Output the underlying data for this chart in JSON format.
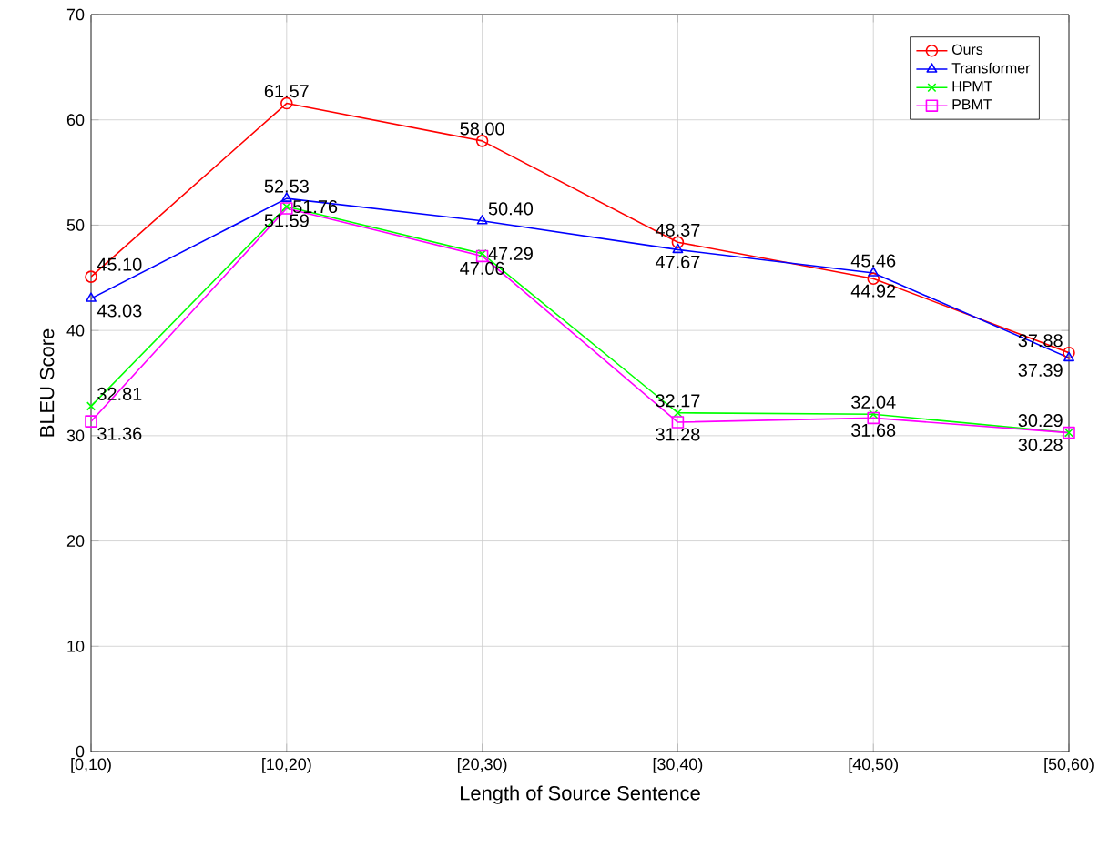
{
  "chart_data": {
    "type": "line",
    "xlabel": "Length of Source Sentence",
    "ylabel": "BLEU Score",
    "categories": [
      "[0,10)",
      "[10,20)",
      "[20,30)",
      "[30,40)",
      "[40,50)",
      "[50,60)"
    ],
    "ylim": [
      0,
      70
    ],
    "yticks": [
      0,
      10,
      20,
      30,
      40,
      50,
      60,
      70
    ],
    "grid": true,
    "legend": "top right",
    "series": [
      {
        "name": "Ours",
        "color": "#ff0000",
        "marker": "circle",
        "values": [
          45.1,
          61.57,
          58.0,
          48.37,
          44.92,
          37.88
        ],
        "value_labels": [
          "45.10",
          "61.57",
          "58.00",
          "48.37",
          "44.92",
          "37.88"
        ]
      },
      {
        "name": "Transformer",
        "color": "#0000ff",
        "marker": "triangle",
        "values": [
          43.03,
          52.53,
          50.4,
          47.67,
          45.46,
          37.39
        ],
        "value_labels": [
          "43.03",
          "52.53",
          "50.40",
          "47.67",
          "45.46",
          "37.39"
        ]
      },
      {
        "name": "HPMT",
        "color": "#00ff00",
        "marker": "cross",
        "values": [
          32.81,
          51.76,
          47.29,
          32.17,
          32.04,
          30.29
        ],
        "value_labels": [
          "32.81",
          "51.76",
          "47.29",
          "32.17",
          "32.04",
          "30.29"
        ]
      },
      {
        "name": "PBMT",
        "color": "#ff00ff",
        "marker": "square",
        "values": [
          31.36,
          51.59,
          47.06,
          31.28,
          31.68,
          30.28
        ],
        "value_labels": [
          "31.36",
          "51.59",
          "47.06",
          "31.28",
          "31.68",
          "30.28"
        ]
      }
    ]
  }
}
